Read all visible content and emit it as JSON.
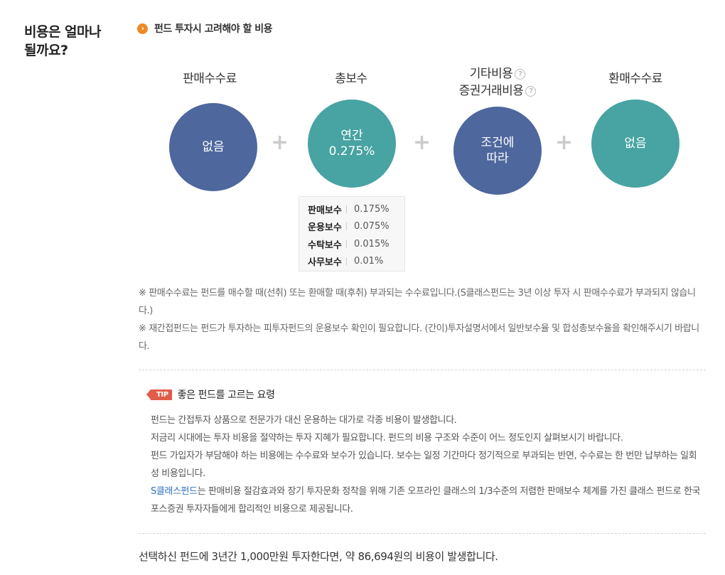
{
  "side_title": {
    "line1": "비용은 얼마나",
    "line2": "될까요?"
  },
  "section_title": "펀드 투자시 고려해야 할 비용",
  "fees": {
    "sales_commission": {
      "label": "판매수수료",
      "value": "없음"
    },
    "total_fee": {
      "label": "총보수",
      "value_line1": "연간",
      "value_line2": "0.275%"
    },
    "other_costs": {
      "label1": "기타비용",
      "label2": "증권거래비용",
      "value_line1": "조건에",
      "value_line2": "따라"
    },
    "redemption_fee": {
      "label": "환매수수료",
      "value": "없음"
    }
  },
  "plus_symbol": "+",
  "help_symbol": "?",
  "breakdown": [
    {
      "name": "판매보수",
      "value": "0.175%"
    },
    {
      "name": "운용보수",
      "value": "0.075%"
    },
    {
      "name": "수탁보수",
      "value": "0.015%"
    },
    {
      "name": "사무보수",
      "value": "0.01%"
    }
  ],
  "notes": [
    "※ 판매수수료는 펀드를 매수할 때(선취) 또는 환매할 때(후취) 부과되는 수수료입니다.(S클래스펀드는 3년 이상 투자 시 판매수수료가 부과되지 않습니다.)",
    "※ 재간접펀드는 펀드가 투자하는 피투자펀드의 운용보수 확인이 필요합니다. (간이)투자설명서에서 일반보수율 및 합성총보수율을 확인해주시기 바랍니다."
  ],
  "tip": {
    "badge": "TIP",
    "title": "좋은 펀드를 고르는 요령",
    "lines": [
      "펀드는 간접투자 상품으로 전문가가 대신 운용하는 대가로 각종 비용이 발생합니다.",
      "저금리 시대에는 투자 비용을 절약하는 투자 지혜가 필요합니다. 펀드의 비용 구조와 수준이 어느 정도인지 살펴보시기 바랍니다.",
      "펀드 가입자가 부담해야 하는 비용에는 수수료와 보수가 있습니다. 보수는 일정 기간마다 정기적으로 부과되는 반면, 수수료는 한 번만 납부하는 일회성 비용입니다."
    ],
    "link_text": "S클래스펀드",
    "last_line": "는 판매비용 절감효과와 장기 투자문화 정착을 위해 기존 오프라인 클래스의 1/3수준의 저렴한 판매보수 체계를 가진 클래스 펀드로 한국포스증권 투자자들에게 합리적인 비용으로 제공됩니다."
  },
  "summary": "선택하신 펀드에 3년간 1,000만원 투자한다면, 약 86,694원의 비용이 발생합니다.",
  "colors": {
    "navy": "#4e679d",
    "teal": "#48a3a3",
    "accent_orange": "#ec8a26",
    "tip_red": "#e25c49",
    "link_blue": "#2f6fc1"
  }
}
